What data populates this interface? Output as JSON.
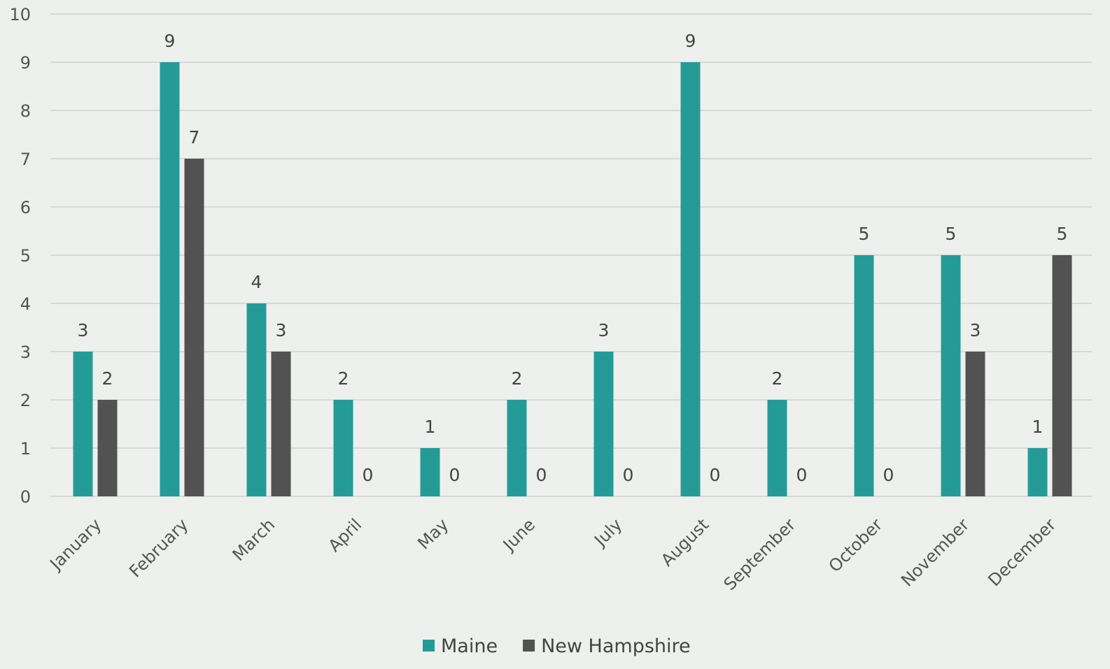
{
  "chart_data": {
    "type": "bar",
    "categories": [
      "January",
      "February",
      "March",
      "April",
      "May",
      "June",
      "July",
      "August",
      "September",
      "October",
      "November",
      "December"
    ],
    "series": [
      {
        "name": "Maine",
        "color": "#259b98",
        "values": [
          3,
          9,
          4,
          2,
          1,
          2,
          3,
          9,
          2,
          5,
          5,
          1
        ]
      },
      {
        "name": "New Hampshire",
        "color": "#525252",
        "values": [
          2,
          7,
          3,
          0,
          0,
          0,
          0,
          0,
          0,
          0,
          3,
          5
        ]
      }
    ],
    "ylim": [
      0,
      10
    ],
    "yticks": [
      0,
      1,
      2,
      3,
      4,
      5,
      6,
      7,
      8,
      9,
      10
    ],
    "grid": true,
    "legend": "bottom-center",
    "data_labels": true
  }
}
